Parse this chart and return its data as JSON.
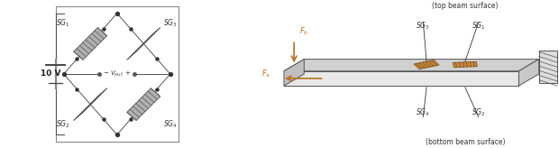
{
  "background_color": "#ffffff",
  "left_panel": {
    "border_lw": 1.0,
    "border_color": "#888888",
    "volt_label": "10 V",
    "vout_text": "- $V_{out}$ +"
  },
  "right_panel": {
    "beam_top_color": "#d8d8d8",
    "beam_front_color": "#e8e8e8",
    "beam_side_color": "#c8c8c8",
    "wall_color": "#aaaaaa",
    "force_color": "#b87020",
    "sg_color": "#c88030",
    "label_top": "(top beam surface)",
    "label_bottom": "(bottom beam surface)"
  }
}
